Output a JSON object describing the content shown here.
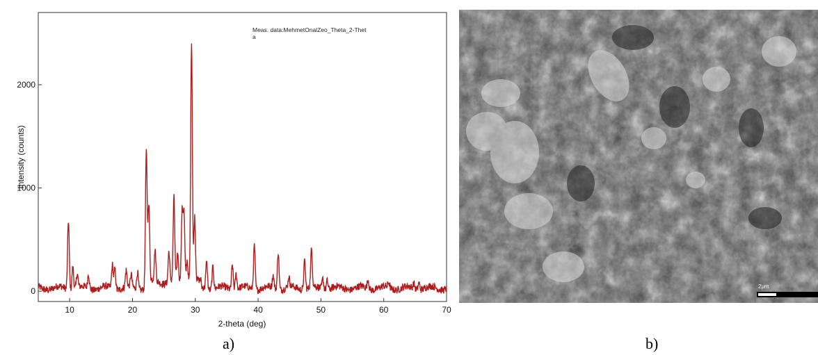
{
  "chart_data": {
    "type": "line",
    "title": "",
    "legend": [
      "Meas. data:MehmetOnalZeo_Theta_2-Thet",
      "a"
    ],
    "xlabel": "2-theta (deg)",
    "ylabel": "Intensity (counts)",
    "xlim": [
      5,
      70
    ],
    "ylim": [
      -100,
      2700
    ],
    "xticks": [
      10,
      20,
      30,
      40,
      50,
      60,
      70
    ],
    "yticks": [
      0,
      1000,
      2000
    ],
    "line_color": "#b01c1c",
    "series": [
      {
        "name": "Meas. data:MehmetOnalZeo_Theta_2-Theta",
        "peaks": [
          [
            9.8,
            700
          ],
          [
            10.5,
            250
          ],
          [
            11.2,
            170
          ],
          [
            13.0,
            170
          ],
          [
            16.8,
            260
          ],
          [
            17.2,
            230
          ],
          [
            19.0,
            190
          ],
          [
            19.8,
            150
          ],
          [
            20.8,
            200
          ],
          [
            22.2,
            1300
          ],
          [
            22.6,
            780
          ],
          [
            23.6,
            330
          ],
          [
            25.8,
            330
          ],
          [
            26.6,
            830
          ],
          [
            27.2,
            300
          ],
          [
            27.9,
            700
          ],
          [
            28.2,
            700
          ],
          [
            28.7,
            260
          ],
          [
            29.4,
            2380
          ],
          [
            29.9,
            650
          ],
          [
            31.8,
            300
          ],
          [
            32.8,
            250
          ],
          [
            35.9,
            270
          ],
          [
            36.5,
            180
          ],
          [
            39.4,
            460
          ],
          [
            42.4,
            150
          ],
          [
            43.2,
            400
          ],
          [
            44.9,
            120
          ],
          [
            47.4,
            310
          ],
          [
            48.5,
            400
          ],
          [
            50.3,
            130
          ],
          [
            51.0,
            120
          ],
          [
            57.5,
            120
          ],
          [
            60.8,
            80
          ],
          [
            64.8,
            80
          ],
          [
            65.6,
            100
          ]
        ]
      }
    ]
  },
  "captions": {
    "a": "a)",
    "b": "b)"
  },
  "sem": {
    "scale_bar": "2μm"
  }
}
